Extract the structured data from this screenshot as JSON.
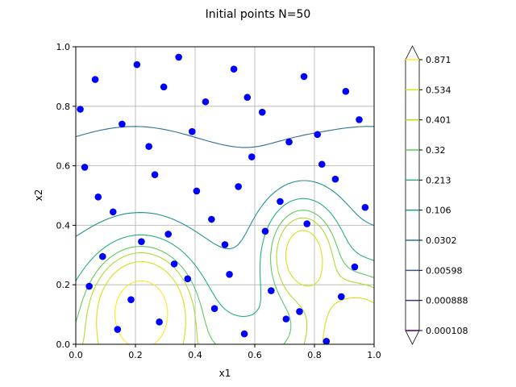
{
  "chart_data": {
    "type": "contour+scatter",
    "title": "Initial points N=50",
    "xlabel": "x1",
    "ylabel": "x2",
    "xlim": [
      0,
      1
    ],
    "ylim": [
      0,
      1
    ],
    "xticks": [
      "0.0",
      "0.2",
      "0.4",
      "0.6",
      "0.8",
      "1.0"
    ],
    "yticks": [
      "0.0",
      "0.2",
      "0.4",
      "0.6",
      "0.8",
      "1.0"
    ],
    "grid": true,
    "point_color": "#0000ff",
    "colorbar": {
      "levels": [
        "0.000108",
        "0.000888",
        "0.00598",
        "0.0302",
        "0.106",
        "0.213",
        "0.32",
        "0.401",
        "0.534",
        "0.871"
      ],
      "colors": [
        "#440154",
        "#472d7b",
        "#3b528b",
        "#2c728e",
        "#21918c",
        "#28ae80",
        "#5ec962",
        "#addc30",
        "#d5e21a",
        "#fde725"
      ],
      "extend": "both"
    },
    "points": [
      [
        0.015,
        0.79
      ],
      [
        0.065,
        0.89
      ],
      [
        0.205,
        0.94
      ],
      [
        0.345,
        0.965
      ],
      [
        0.295,
        0.865
      ],
      [
        0.435,
        0.815
      ],
      [
        0.53,
        0.925
      ],
      [
        0.575,
        0.83
      ],
      [
        0.625,
        0.78
      ],
      [
        0.765,
        0.9
      ],
      [
        0.905,
        0.85
      ],
      [
        0.95,
        0.755
      ],
      [
        0.155,
        0.74
      ],
      [
        0.39,
        0.715
      ],
      [
        0.81,
        0.705
      ],
      [
        0.715,
        0.68
      ],
      [
        0.245,
        0.665
      ],
      [
        0.59,
        0.63
      ],
      [
        0.03,
        0.595
      ],
      [
        0.825,
        0.605
      ],
      [
        0.265,
        0.57
      ],
      [
        0.87,
        0.555
      ],
      [
        0.405,
        0.515
      ],
      [
        0.545,
        0.53
      ],
      [
        0.075,
        0.495
      ],
      [
        0.685,
        0.48
      ],
      [
        0.125,
        0.445
      ],
      [
        0.97,
        0.46
      ],
      [
        0.455,
        0.42
      ],
      [
        0.775,
        0.405
      ],
      [
        0.635,
        0.38
      ],
      [
        0.31,
        0.37
      ],
      [
        0.22,
        0.345
      ],
      [
        0.5,
        0.335
      ],
      [
        0.09,
        0.295
      ],
      [
        0.33,
        0.27
      ],
      [
        0.935,
        0.26
      ],
      [
        0.375,
        0.22
      ],
      [
        0.515,
        0.235
      ],
      [
        0.045,
        0.195
      ],
      [
        0.655,
        0.18
      ],
      [
        0.185,
        0.15
      ],
      [
        0.89,
        0.16
      ],
      [
        0.465,
        0.12
      ],
      [
        0.75,
        0.11
      ],
      [
        0.28,
        0.075
      ],
      [
        0.705,
        0.085
      ],
      [
        0.14,
        0.05
      ],
      [
        0.565,
        0.035
      ],
      [
        0.84,
        0.01
      ]
    ]
  }
}
